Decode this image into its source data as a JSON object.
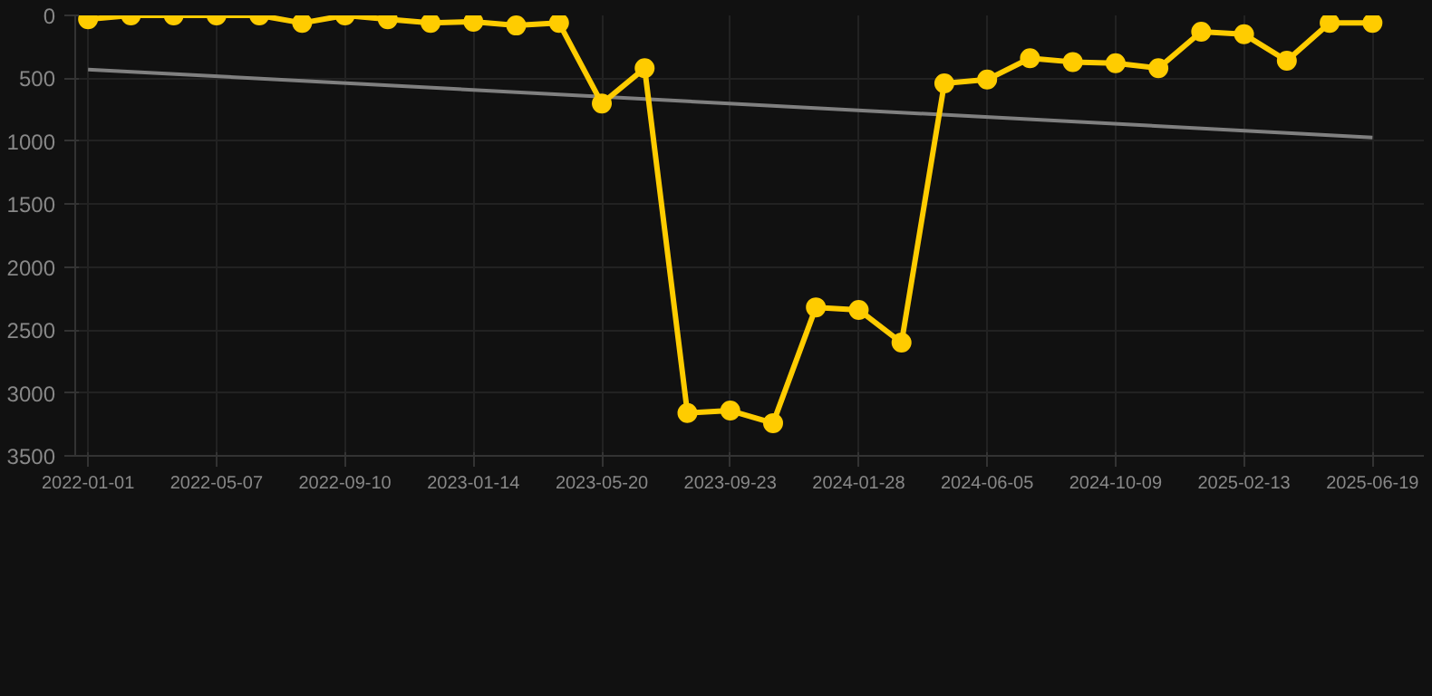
{
  "chart_data": {
    "type": "line",
    "ylim": [
      3500,
      0
    ],
    "yticks": [
      0,
      500,
      1000,
      1500,
      2000,
      2500,
      3000,
      3500
    ],
    "grid": true,
    "marker": "circle",
    "categories": [
      "2022-01-01",
      null,
      null,
      "2022-05-07",
      null,
      null,
      "2022-09-10",
      null,
      null,
      "2023-01-14",
      null,
      null,
      "2023-05-20",
      null,
      null,
      "2023-09-23",
      null,
      null,
      "2024-01-28",
      null,
      null,
      "2024-06-05",
      null,
      null,
      "2024-10-09",
      null,
      null,
      "2025-02-13",
      null,
      null,
      "2025-06-19"
    ],
    "series": [
      {
        "color": "#ffcc00",
        "values": [
          30,
          0,
          0,
          0,
          0,
          60,
          0,
          30,
          60,
          50,
          80,
          60,
          700,
          420,
          3160,
          3140,
          3240,
          2320,
          2340,
          2600,
          540,
          510,
          340,
          370,
          380,
          420,
          130,
          150,
          360,
          60,
          60
        ]
      },
      {
        "color": "#808080",
        "marker": "none",
        "values": [
          430,
          null,
          null,
          null,
          null,
          null,
          null,
          null,
          null,
          null,
          null,
          null,
          null,
          null,
          null,
          null,
          null,
          null,
          null,
          null,
          null,
          null,
          null,
          null,
          null,
          null,
          null,
          null,
          null,
          null,
          970
        ]
      }
    ]
  }
}
